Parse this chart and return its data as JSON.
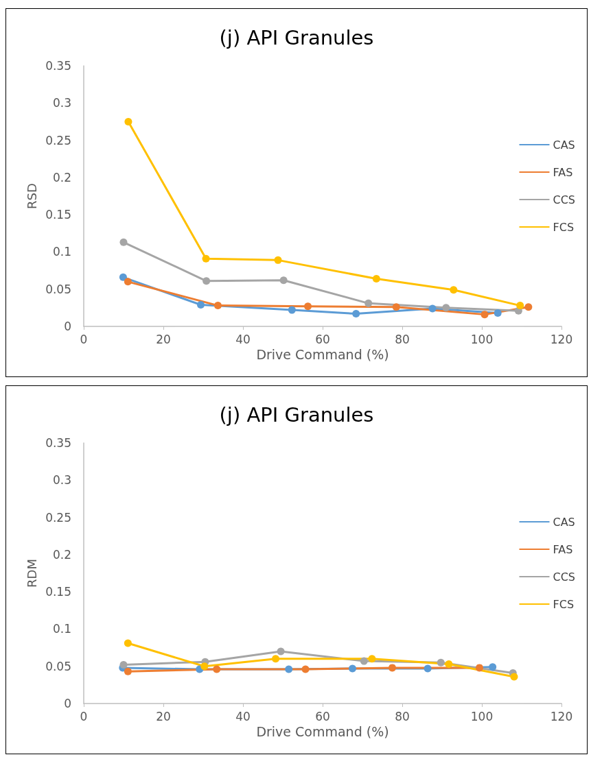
{
  "chart_data": [
    {
      "type": "line",
      "title": "(j) API Granules",
      "xlabel": "Drive Command (%)",
      "ylabel": "RSD",
      "xlim": [
        0,
        120
      ],
      "xticks": [
        0,
        20,
        40,
        60,
        80,
        100,
        120
      ],
      "ylim": [
        0,
        0.35
      ],
      "yticks": [
        0,
        0.05,
        0.1,
        0.15,
        0.2,
        0.25,
        0.3,
        0.35
      ],
      "grid": false,
      "legend": "right",
      "marker": "circle",
      "line_style": "solid",
      "series": [
        {
          "name": "CAS",
          "color": "#5b9bd5",
          "x": [
            9.9,
            29.4,
            52.3,
            68.4,
            87.6,
            104
          ],
          "values": [
            0.066,
            0.029,
            0.022,
            0.017,
            0.024,
            0.018
          ]
        },
        {
          "name": "FAS",
          "color": "#ed7d31",
          "x": [
            11.1,
            33.7,
            56.3,
            78.5,
            100.7,
            111.7
          ],
          "values": [
            0.06,
            0.028,
            0.027,
            0.026,
            0.016,
            0.026
          ]
        },
        {
          "name": "CCS",
          "color": "#a5a5a5",
          "x": [
            10,
            30.8,
            50.2,
            71.5,
            91,
            109.2
          ],
          "values": [
            0.113,
            0.061,
            0.062,
            0.031,
            0.025,
            0.021
          ]
        },
        {
          "name": "FCS",
          "color": "#ffc000",
          "x": [
            11.2,
            30.7,
            48.8,
            73.5,
            92.9,
            109.6
          ],
          "values": [
            0.275,
            0.091,
            0.089,
            0.064,
            0.049,
            0.028
          ]
        }
      ]
    },
    {
      "type": "line",
      "title": "(j) API Granules",
      "xlabel": "Drive Command (%)",
      "ylabel": "RDM",
      "xlim": [
        0,
        120
      ],
      "xticks": [
        0,
        20,
        40,
        60,
        80,
        100,
        120
      ],
      "ylim": [
        0,
        0.35
      ],
      "yticks": [
        0,
        0.05,
        0.1,
        0.15,
        0.2,
        0.25,
        0.3,
        0.35
      ],
      "grid": false,
      "legend": "right",
      "marker": "circle",
      "line_style": "solid",
      "series": [
        {
          "name": "CAS",
          "color": "#5b9bd5",
          "x": [
            9.8,
            29.1,
            51.5,
            67.5,
            86.4,
            102.7
          ],
          "values": [
            0.048,
            0.046,
            0.046,
            0.047,
            0.047,
            0.049
          ]
        },
        {
          "name": "FAS",
          "color": "#ed7d31",
          "x": [
            11.1,
            33.4,
            55.7,
            77.5,
            99.4
          ],
          "values": [
            0.043,
            0.046,
            0.046,
            0.048,
            0.048
          ]
        },
        {
          "name": "CCS",
          "color": "#a5a5a5",
          "x": [
            10,
            30.5,
            49.5,
            70.4,
            89.7,
            107.8
          ],
          "values": [
            0.052,
            0.056,
            0.07,
            0.057,
            0.055,
            0.041
          ]
        },
        {
          "name": "FCS",
          "color": "#ffc000",
          "x": [
            11.1,
            30.3,
            48.2,
            72.4,
            91.7,
            108.1
          ],
          "values": [
            0.081,
            0.05,
            0.06,
            0.06,
            0.053,
            0.036
          ]
        }
      ]
    }
  ]
}
